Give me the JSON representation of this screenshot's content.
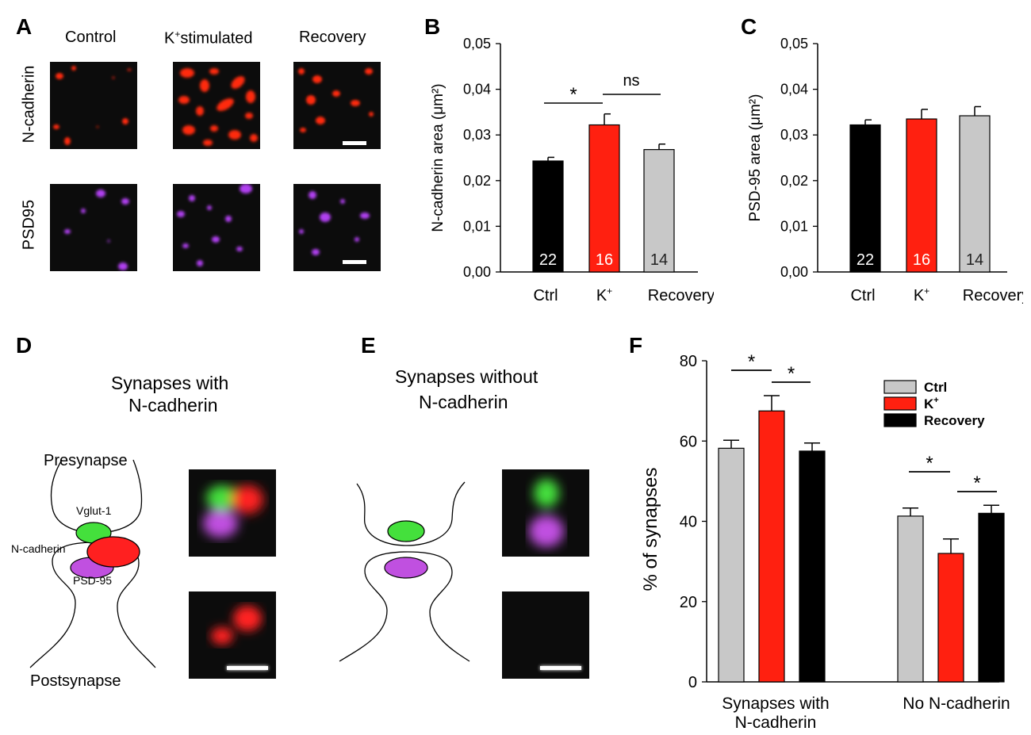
{
  "panel_letters": {
    "A": "A",
    "B": "B",
    "C": "C",
    "D": "D",
    "E": "E",
    "F": "F"
  },
  "panel_a": {
    "columns": [
      "Control",
      "K",
      "stimulated",
      "Recovery"
    ],
    "k_superscript": "+",
    "rows": [
      "N-cadherin",
      "PSD95"
    ],
    "colors": {
      "ncadherin": "#ff2a10",
      "psd95": "#b040f0",
      "background": "#0c0c0c"
    }
  },
  "panel_d": {
    "title_line1": "Synapses with",
    "title_line2": "N-cadherin",
    "presynapse": "Presynapse",
    "postsynapse": "Postsynapse",
    "vglut": "Vglut-1",
    "ncadherin": "N-cadherin",
    "psd95": "PSD-95",
    "colors": {
      "vglut": "#44e03c",
      "ncadherin": "#ff2020",
      "psd95": "#c050e0"
    }
  },
  "panel_e": {
    "title_line1": "Synapses without",
    "title_line2": "N-cadherin"
  },
  "chart_data": [
    {
      "panel": "B",
      "type": "bar",
      "categories": [
        "Ctrl",
        "K",
        "Recovery"
      ],
      "category_superscripts": [
        "",
        "+",
        ""
      ],
      "values": [
        0.0243,
        0.0322,
        0.0268
      ],
      "errors": [
        0.0008,
        0.0024,
        0.0012
      ],
      "n_labels": [
        "22",
        "16",
        "14"
      ],
      "colors": [
        "#000000",
        "#ff2010",
        "#c8c8c8"
      ],
      "ylabel": "N-cadherin area (μm²)",
      "ylim": [
        0,
        0.05
      ],
      "yticks": [
        "0,00",
        "0,01",
        "0,02",
        "0,03",
        "0,04",
        "0,05"
      ],
      "annotations": [
        {
          "pair": "Ctrl–K+",
          "label": "*"
        },
        {
          "pair": "K+–Recovery",
          "label": "ns"
        }
      ]
    },
    {
      "panel": "C",
      "type": "bar",
      "categories": [
        "Ctrl",
        "K",
        "Recovery"
      ],
      "category_superscripts": [
        "",
        "+",
        ""
      ],
      "values": [
        0.0322,
        0.0335,
        0.0342
      ],
      "errors": [
        0.0011,
        0.0021,
        0.002
      ],
      "n_labels": [
        "22",
        "16",
        "14"
      ],
      "colors": [
        "#000000",
        "#ff2010",
        "#c8c8c8"
      ],
      "ylabel": "PSD-95 area (μm²)",
      "ylim": [
        0,
        0.05
      ],
      "yticks": [
        "0,00",
        "0,01",
        "0,02",
        "0,03",
        "0,04",
        "0,05"
      ]
    },
    {
      "panel": "F",
      "type": "bar",
      "categories": [
        "Synapses with N-cadherin",
        "No N-cadherin"
      ],
      "category_lines": [
        [
          "Synapses with",
          "N-cadherin"
        ],
        [
          "No N-cadherin"
        ]
      ],
      "series": [
        {
          "name": "Ctrl",
          "values": [
            58.2,
            41.3
          ],
          "errors": [
            2.0,
            2.0
          ],
          "color": "#c8c8c8"
        },
        {
          "name": "K",
          "superscript": "+",
          "values": [
            67.5,
            32.0
          ],
          "errors": [
            3.8,
            3.6
          ],
          "color": "#ff2010"
        },
        {
          "name": "Recovery",
          "values": [
            57.5,
            42.0
          ],
          "errors": [
            2.0,
            2.0
          ],
          "color": "#000000"
        }
      ],
      "ylabel": "% of synapses",
      "ylim": [
        0,
        80
      ],
      "yticks": [
        "0",
        "20",
        "40",
        "60",
        "80"
      ],
      "legend_position": "top-right",
      "annotations": [
        {
          "group": "Synapses with N-cadherin",
          "pair": "Ctrl–K+",
          "label": "*"
        },
        {
          "group": "Synapses with N-cadherin",
          "pair": "K+–Recovery",
          "label": "*"
        },
        {
          "group": "No N-cadherin",
          "pair": "Ctrl–K+",
          "label": "*"
        },
        {
          "group": "No N-cadherin",
          "pair": "K+–Recovery",
          "label": "*"
        }
      ]
    }
  ]
}
